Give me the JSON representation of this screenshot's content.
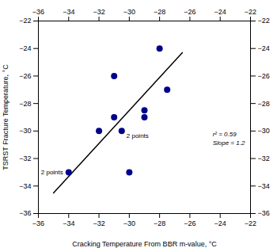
{
  "chart_data": {
    "type": "scatter",
    "xlabel": "Cracking Temperature From BBR m-value, °C",
    "ylabel": "TSRST Fracture Temperature, °C",
    "x": [
      -34,
      -32,
      -31,
      -31,
      -30.5,
      -30,
      -29,
      -29,
      -28,
      -27.5
    ],
    "values": [
      -33,
      -30,
      -26,
      -29,
      -30,
      -33,
      -29,
      -28.5,
      -24,
      -27
    ],
    "color": "#00008B",
    "trendline": {
      "x": [
        -35.0,
        -26.5
      ],
      "y": [
        -34.5,
        -24.3
      ],
      "color": "black"
    },
    "point_labels": [
      {
        "x": -34,
        "y": -33,
        "text": "2 points"
      },
      {
        "x": -30.5,
        "y": -30,
        "text": "2 points"
      }
    ],
    "annotations": [
      {
        "text": "r² = 0.59\nSlope = 1.2",
        "x": -24.5,
        "y": -30.5
      }
    ],
    "xlim": [
      -36,
      -22
    ],
    "ylim": [
      -36,
      -22
    ],
    "xticks": [
      -36,
      -34,
      -32,
      -30,
      -28,
      -26,
      -24,
      -22
    ],
    "yticks": [
      -36,
      -34,
      -32,
      -30,
      -28,
      -26,
      -24,
      -22
    ],
    "grid": false
  }
}
